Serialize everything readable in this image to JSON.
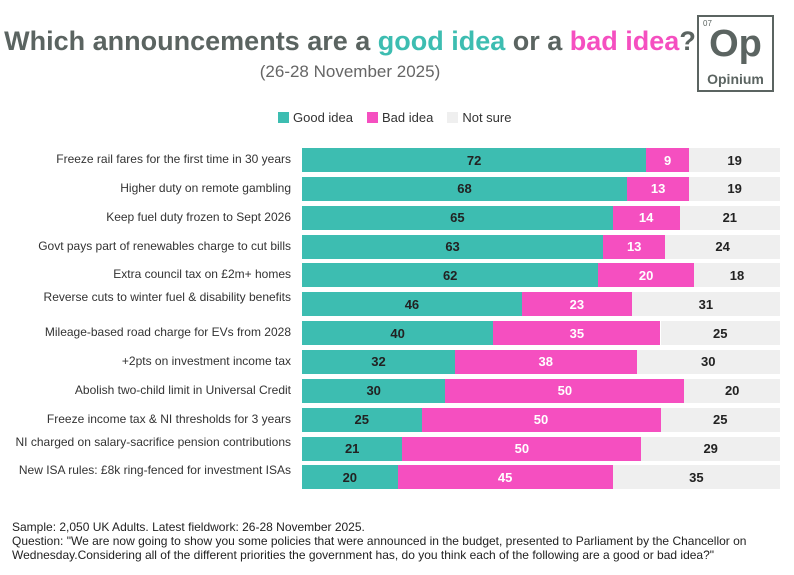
{
  "title": {
    "part1": "Which announcements are a ",
    "good": "good idea",
    "part2": " or a ",
    "bad": "bad idea",
    "part3": "?"
  },
  "subtitle": "(26-28 November 2025)",
  "logo": {
    "number": "07",
    "symbol": "Op",
    "name": "Opinium"
  },
  "colors": {
    "good": "#3dbdb1",
    "bad": "#f54fc0",
    "unsure": "#efefef"
  },
  "chart_data": {
    "type": "bar",
    "stacked": true,
    "orientation": "horizontal",
    "legend": [
      "Good idea",
      "Bad idea",
      "Not sure"
    ],
    "legend_position": "top",
    "categories": [
      "Freeze rail fares for the first time in 30 years",
      "Higher duty on remote gambling",
      "Keep fuel duty frozen to Sept 2026",
      "Govt pays part of renewables charge to cut bills",
      "Extra council tax on £2m+ homes",
      "Reverse cuts to winter fuel & disability benefits",
      "Mileage-based road charge for EVs from 2028",
      "+2pts on investment income tax",
      "Abolish two-child limit in Universal Credit",
      "Freeze income tax & NI thresholds for 3 years",
      "NI charged on salary-sacrifice pension contributions",
      "New ISA rules: £8k ring-fenced for investment ISAs"
    ],
    "series": [
      {
        "name": "Good idea",
        "values": [
          72,
          68,
          65,
          63,
          62,
          46,
          40,
          32,
          30,
          25,
          21,
          20
        ]
      },
      {
        "name": "Bad idea",
        "values": [
          9,
          13,
          14,
          13,
          20,
          23,
          35,
          38,
          50,
          50,
          50,
          45
        ]
      },
      {
        "name": "Not sure",
        "values": [
          19,
          19,
          21,
          24,
          18,
          31,
          25,
          30,
          20,
          25,
          29,
          35
        ]
      }
    ]
  },
  "footer": {
    "sample": "Sample: 2,050 UK Adults. Latest fieldwork: 26-28 November 2025.",
    "question": "Question: \"We are now going to show you some policies that were announced in the budget, presented to Parliament by the Chancellor on Wednesday.Considering all of the different priorities the government has, do you think each of the following are a good or bad idea?\""
  }
}
